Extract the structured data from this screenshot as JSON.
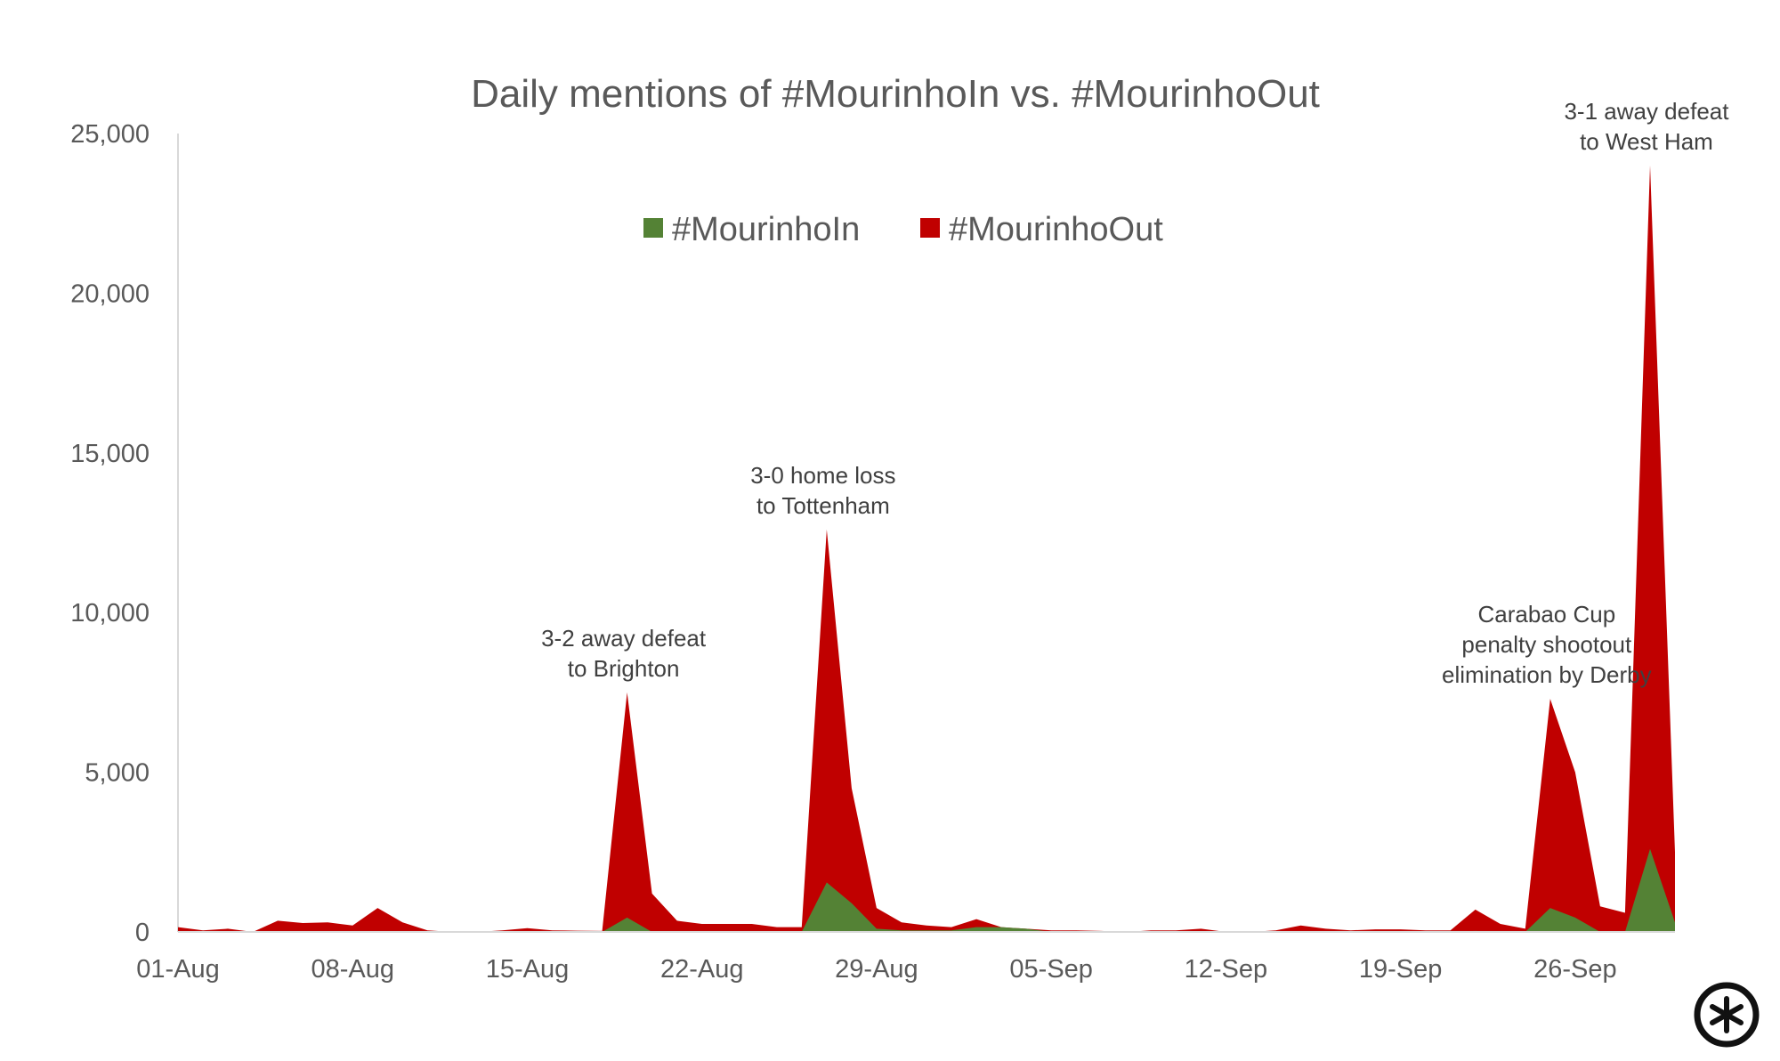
{
  "chart_data": {
    "type": "area",
    "title": "Daily mentions of #MourinhoIn vs. #MourinhoOut",
    "xlabel": "",
    "ylabel": "",
    "ylim": [
      0,
      25000
    ],
    "yticks": [
      0,
      5000,
      10000,
      15000,
      20000,
      25000
    ],
    "ytick_labels": [
      "0",
      "5,000",
      "10,000",
      "15,000",
      "20,000",
      "25,000"
    ],
    "xtick_labels": [
      "01-Aug",
      "08-Aug",
      "15-Aug",
      "22-Aug",
      "29-Aug",
      "05-Sep",
      "12-Sep",
      "19-Sep",
      "26-Sep"
    ],
    "xtick_every_days": 7,
    "x_start": "01-Aug",
    "x_end": "30-Sep",
    "legend_position": "top-center",
    "grid": false,
    "colors": {
      "MourinhoIn": "#548235",
      "MourinhoOut": "#C00000",
      "text": "#595959"
    },
    "series": [
      {
        "name": "#MourinhoOut",
        "values": [
          150,
          50,
          100,
          0,
          350,
          280,
          300,
          200,
          750,
          300,
          50,
          0,
          0,
          50,
          120,
          50,
          40,
          30,
          7500,
          1200,
          350,
          250,
          250,
          250,
          150,
          150,
          12600,
          4500,
          750,
          300,
          200,
          150,
          400,
          150,
          100,
          50,
          50,
          30,
          0,
          50,
          50,
          100,
          0,
          0,
          50,
          200,
          100,
          50,
          80,
          80,
          50,
          50,
          700,
          250,
          100,
          7300,
          5000,
          800,
          600,
          24000,
          2500
        ]
      },
      {
        "name": "#MourinhoIn",
        "values": [
          0,
          0,
          0,
          0,
          0,
          0,
          0,
          0,
          0,
          0,
          0,
          0,
          0,
          0,
          20,
          0,
          0,
          0,
          450,
          0,
          0,
          0,
          0,
          0,
          0,
          0,
          1550,
          900,
          100,
          50,
          50,
          50,
          150,
          150,
          100,
          0,
          0,
          0,
          0,
          0,
          0,
          0,
          0,
          0,
          0,
          0,
          0,
          0,
          0,
          0,
          0,
          0,
          30,
          0,
          0,
          750,
          450,
          0,
          0,
          2600,
          300
        ]
      }
    ],
    "annotations": [
      {
        "day_index": 18,
        "lines": [
          "3-2 away defeat",
          "to Brighton"
        ]
      },
      {
        "day_index": 26,
        "lines": [
          "3-0 home loss",
          "to Tottenham"
        ]
      },
      {
        "day_index": 55,
        "lines": [
          "Carabao Cup",
          "penalty shootout",
          "elimination by Derby"
        ]
      },
      {
        "day_index": 59,
        "lines": [
          "3-1 away defeat",
          "to West Ham"
        ]
      }
    ]
  }
}
